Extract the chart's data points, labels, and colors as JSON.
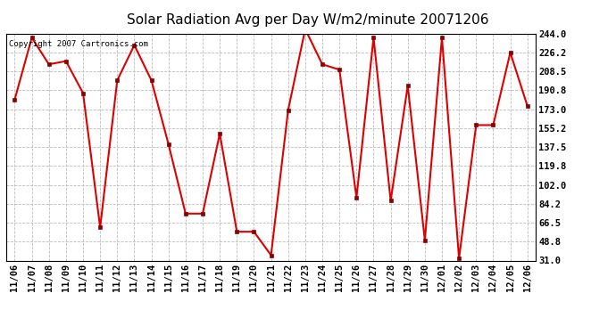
{
  "title": "Solar Radiation Avg per Day W/m2/minute 20071206",
  "copyright": "Copyright 2007 Cartronics.com",
  "x_labels": [
    "11/06",
    "11/07",
    "11/08",
    "11/09",
    "11/10",
    "11/11",
    "11/12",
    "11/13",
    "11/14",
    "11/15",
    "11/16",
    "11/17",
    "11/18",
    "11/19",
    "11/20",
    "11/21",
    "11/22",
    "11/23",
    "11/24",
    "11/25",
    "11/26",
    "11/27",
    "11/28",
    "11/29",
    "11/30",
    "12/01",
    "12/02",
    "12/03",
    "12/04",
    "12/05",
    "12/06"
  ],
  "y_values": [
    182,
    240,
    215,
    218,
    188,
    62,
    200,
    233,
    200,
    140,
    75,
    75,
    150,
    58,
    58,
    36,
    172,
    248,
    215,
    210,
    90,
    240,
    87,
    195,
    50,
    240,
    33,
    158,
    158,
    226,
    176
  ],
  "y_ticks": [
    31.0,
    48.8,
    66.5,
    84.2,
    102.0,
    119.8,
    137.5,
    155.2,
    173.0,
    190.8,
    208.5,
    226.2,
    244.0
  ],
  "line_color": "#dd0000",
  "marker_color": "#880000",
  "bg_color": "#ffffff",
  "plot_bg_color": "#ffffff",
  "grid_color": "#bbbbbb",
  "title_fontsize": 11,
  "copyright_fontsize": 6.5,
  "tick_fontsize": 7.5,
  "ylim": [
    31.0,
    244.0
  ]
}
